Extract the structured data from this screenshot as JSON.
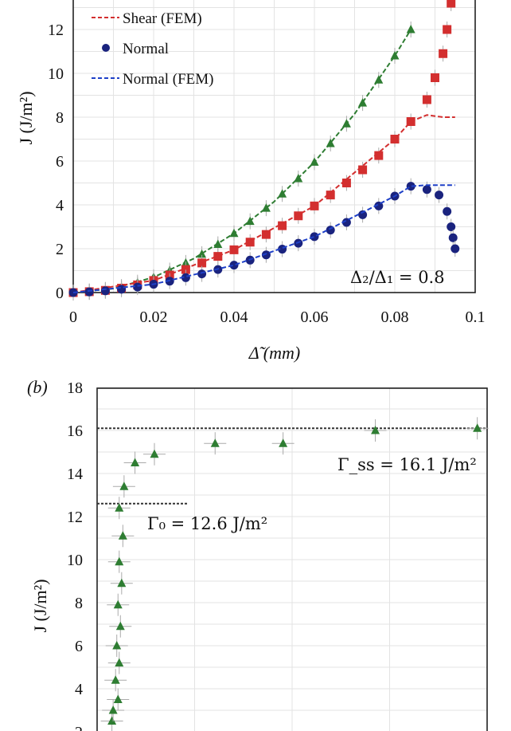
{
  "chart_data": [
    {
      "type": "line",
      "panel_label": "",
      "xlabel": "Δ̃ (mm)",
      "ylabel": "J (J/m²)",
      "xlim": [
        0,
        0.1
      ],
      "ylim": [
        0,
        13.5
      ],
      "xticks": [
        "0",
        "0.02",
        "0.04",
        "0.06",
        "0.08",
        "0.1"
      ],
      "yticks": [
        "0",
        "2",
        "4",
        "6",
        "8",
        "10",
        "12"
      ],
      "legend": [
        "Shear (FEM)",
        "Normal",
        "Normal (FEM)"
      ],
      "annotation": "Δ₂/Δ₁ = 0.8",
      "series": [
        {
          "name": "Green (triangles)",
          "marker": "triangle",
          "color": "#2e7d32",
          "x": [
            0,
            0.004,
            0.008,
            0.012,
            0.016,
            0.02,
            0.024,
            0.028,
            0.032,
            0.036,
            0.04,
            0.044,
            0.048,
            0.052,
            0.056,
            0.06,
            0.064,
            0.068,
            0.072,
            0.076,
            0.08,
            0.084
          ],
          "y": [
            0,
            0.05,
            0.12,
            0.25,
            0.45,
            0.7,
            1.0,
            1.35,
            1.75,
            2.2,
            2.7,
            3.25,
            3.85,
            4.5,
            5.2,
            5.95,
            6.8,
            7.7,
            8.65,
            9.7,
            10.8,
            12.0
          ]
        },
        {
          "name": "Green (FEM)",
          "style": "dashed",
          "color": "#2e7d32",
          "x": [
            0,
            0.01,
            0.02,
            0.03,
            0.04,
            0.05,
            0.06,
            0.07,
            0.08,
            0.084
          ],
          "y": [
            0,
            0.18,
            0.7,
            1.55,
            2.7,
            4.15,
            5.95,
            8.15,
            10.8,
            12.0
          ]
        },
        {
          "name": "Shear",
          "marker": "square",
          "color": "#d32f2f",
          "x": [
            0,
            0.004,
            0.008,
            0.012,
            0.016,
            0.02,
            0.024,
            0.028,
            0.032,
            0.036,
            0.04,
            0.044,
            0.048,
            0.052,
            0.056,
            0.06,
            0.064,
            0.068,
            0.072,
            0.076,
            0.08,
            0.084,
            0.088,
            0.09,
            0.092,
            0.093,
            0.094
          ],
          "y": [
            0,
            0.04,
            0.1,
            0.2,
            0.35,
            0.55,
            0.8,
            1.05,
            1.35,
            1.65,
            1.95,
            2.3,
            2.65,
            3.05,
            3.5,
            3.95,
            4.45,
            5.0,
            5.6,
            6.25,
            7.0,
            7.8,
            8.8,
            9.8,
            10.9,
            12.0,
            13.2
          ]
        },
        {
          "name": "Shear (FEM)",
          "style": "dashed",
          "color": "#d32f2f",
          "x": [
            0,
            0.02,
            0.04,
            0.06,
            0.08,
            0.084,
            0.088,
            0.092,
            0.095
          ],
          "y": [
            0,
            0.55,
            1.95,
            3.95,
            7.0,
            7.8,
            8.1,
            8.0,
            8.0
          ]
        },
        {
          "name": "Normal",
          "marker": "circle",
          "color": "#1a237e",
          "x": [
            0,
            0.004,
            0.008,
            0.012,
            0.016,
            0.02,
            0.024,
            0.028,
            0.032,
            0.036,
            0.04,
            0.044,
            0.048,
            0.052,
            0.056,
            0.06,
            0.064,
            0.068,
            0.072,
            0.076,
            0.08,
            0.084,
            0.088,
            0.091,
            0.093,
            0.094,
            0.0945,
            0.095
          ],
          "y": [
            0,
            0.03,
            0.08,
            0.15,
            0.25,
            0.38,
            0.52,
            0.68,
            0.85,
            1.05,
            1.25,
            1.48,
            1.72,
            1.98,
            2.25,
            2.55,
            2.85,
            3.2,
            3.55,
            3.95,
            4.4,
            4.85,
            4.7,
            4.45,
            3.7,
            3.0,
            2.5,
            2.0
          ]
        },
        {
          "name": "Normal (FEM)",
          "style": "dashed",
          "color": "#1e40c8",
          "x": [
            0,
            0.02,
            0.04,
            0.06,
            0.08,
            0.084,
            0.088,
            0.095
          ],
          "y": [
            0,
            0.38,
            1.25,
            2.55,
            4.4,
            4.85,
            4.9,
            4.9
          ]
        }
      ]
    },
    {
      "type": "scatter",
      "panel_label": "(b)",
      "ylabel": "J (J/m²)",
      "ylim": [
        2,
        18
      ],
      "yticks": [
        "18",
        "16",
        "14",
        "12",
        "10",
        "8",
        "6",
        "4",
        "2"
      ],
      "reference_lines": [
        {
          "label": "Γ_ss = 16.1 J/m²",
          "y": 16.1
        },
        {
          "label": "Γ₀ = 12.6 J/m²",
          "y": 12.6
        }
      ],
      "series": [
        {
          "name": "R-curve",
          "marker": "triangle",
          "color": "#2e7d32",
          "x": [
            0.25,
            0.3,
            0.5,
            0.4,
            0.55,
            0.45,
            0.6,
            0.5,
            0.65,
            0.55,
            0.7,
            0.55,
            0.75,
            1.2,
            2.0,
            4.5,
            7.3,
            11.1,
            15.3
          ],
          "y": [
            2.5,
            3.0,
            3.5,
            4.4,
            5.2,
            6.0,
            6.9,
            7.9,
            8.9,
            9.9,
            11.1,
            12.4,
            13.4,
            14.5,
            14.9,
            15.4,
            15.4,
            16.0,
            16.1
          ]
        }
      ]
    }
  ]
}
